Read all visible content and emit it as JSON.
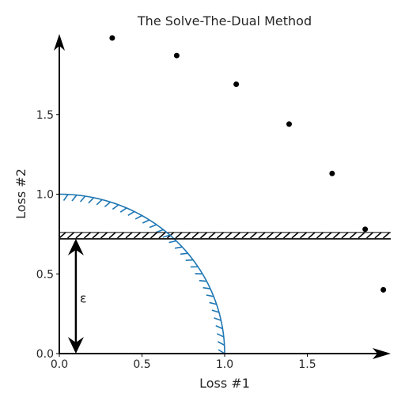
{
  "chart_data": {
    "type": "scatter",
    "title": "The Solve-The-Dual Method",
    "xlabel": "Loss #1",
    "ylabel": "Loss #2",
    "xlim": [
      0,
      2
    ],
    "ylim": [
      0,
      2
    ],
    "xticks": [
      {
        "value": 0.0,
        "label": "0.0"
      },
      {
        "value": 0.5,
        "label": "0.5"
      },
      {
        "value": 1.0,
        "label": "1.0"
      },
      {
        "value": 1.5,
        "label": "1.5"
      }
    ],
    "yticks": [
      {
        "value": 0.0,
        "label": "0.0"
      },
      {
        "value": 0.5,
        "label": "0.5"
      },
      {
        "value": 1.0,
        "label": "1.0"
      },
      {
        "value": 1.5,
        "label": "1.5"
      }
    ],
    "points": [
      {
        "x": 0.32,
        "y": 1.98
      },
      {
        "x": 0.71,
        "y": 1.87
      },
      {
        "x": 1.07,
        "y": 1.69
      },
      {
        "x": 1.39,
        "y": 1.44
      },
      {
        "x": 1.65,
        "y": 1.13
      },
      {
        "x": 1.85,
        "y": 0.78
      },
      {
        "x": 1.96,
        "y": 0.4
      }
    ],
    "arc": {
      "radius": 1.0,
      "color": "#1f77b4",
      "hatched": true
    },
    "constraint_line": {
      "y": 0.72,
      "hatched": true
    },
    "epsilon_arrow": {
      "x": 0.1,
      "y_from": 0.0,
      "y_to": 0.72,
      "label": "ε"
    }
  }
}
